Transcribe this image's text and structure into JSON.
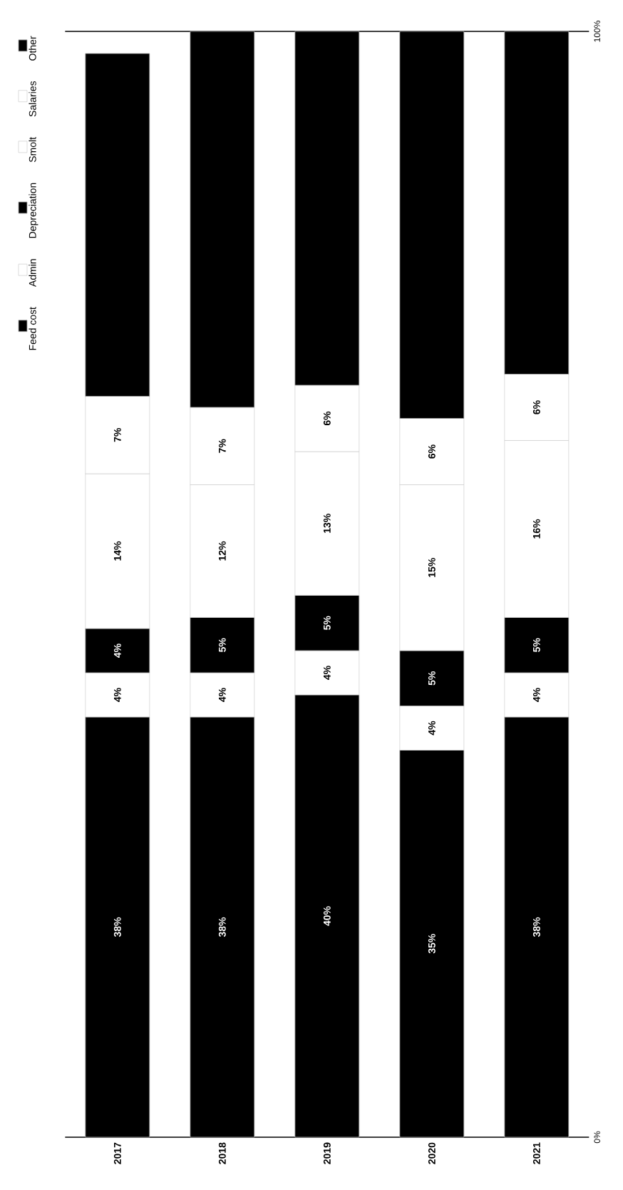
{
  "chart_data": {
    "type": "bar",
    "stacked": true,
    "categories": [
      "2017",
      "2018",
      "2019",
      "2020",
      "2021"
    ],
    "series": [
      {
        "name": "Feed cost",
        "color": "#000000",
        "values": [
          38,
          38,
          40,
          35,
          38
        ],
        "value_labels": [
          "38%",
          "38%",
          "40%",
          "35%",
          "38%"
        ]
      },
      {
        "name": "Admin",
        "color": "#ffffff",
        "values": [
          4,
          4,
          4,
          4,
          4
        ],
        "value_labels": [
          "4%",
          "4%",
          "4%",
          "4%",
          "4%"
        ]
      },
      {
        "name": "Depreciation",
        "color": "#000000",
        "values": [
          4,
          5,
          5,
          5,
          5
        ],
        "value_labels": [
          "4%",
          "5%",
          "5%",
          "5%",
          "5%"
        ]
      },
      {
        "name": "Smolt",
        "color": "#ffffff",
        "values": [
          14,
          12,
          13,
          15,
          16
        ],
        "value_labels": [
          "14%",
          "12%",
          "13%",
          "15%",
          "16%"
        ]
      },
      {
        "name": "Salaries",
        "color": "#ffffff",
        "values": [
          7,
          7,
          6,
          6,
          6
        ],
        "value_labels": [
          "7%",
          "7%",
          "6%",
          "6%",
          "6%"
        ]
      },
      {
        "name": "Other",
        "color": "#000000",
        "values": [
          31,
          34,
          32,
          35,
          31
        ]
      }
    ],
    "ylim": [
      0,
      100
    ],
    "yticks": [
      {
        "value": 0,
        "label": "0%"
      },
      {
        "value": 100,
        "label": "100%"
      }
    ],
    "legend": "left"
  }
}
